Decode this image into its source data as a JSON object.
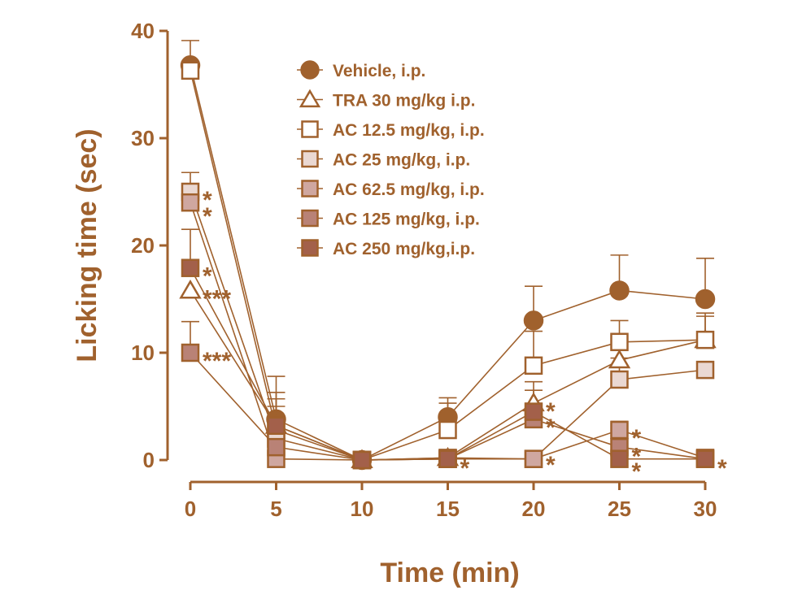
{
  "chart_data": {
    "type": "line",
    "title": "",
    "xlabel": "Time (min)",
    "ylabel": "Licking time (sec)",
    "x": [
      0,
      5,
      10,
      15,
      20,
      25,
      30
    ],
    "xlim": [
      0,
      30
    ],
    "ylim": [
      0,
      40
    ],
    "xticks": [
      "0",
      "5",
      "10",
      "15",
      "20",
      "25",
      "30"
    ],
    "yticks": [
      "0",
      "10",
      "20",
      "30",
      "40"
    ],
    "grid": false,
    "legend_position": "top-right",
    "series": [
      {
        "name": "Vehicle, i.p.",
        "marker": "circle",
        "fill": "#a0612d",
        "values": [
          36.8,
          3.8,
          0,
          4.0,
          13.0,
          15.8,
          15.0
        ],
        "err": [
          2.3,
          4.0,
          0,
          1.8,
          3.2,
          3.3,
          3.8
        ]
      },
      {
        "name": "TRA 30 mg/kg i.p.",
        "marker": "triangle",
        "fill": "#ffffff",
        "values": [
          15.8,
          3.2,
          0,
          0.2,
          5.3,
          9.3,
          11.2
        ],
        "err": [
          0,
          2.5,
          0,
          0,
          2.0,
          2.5,
          2.2
        ]
      },
      {
        "name": "AC 12.5 mg/kg, i.p.",
        "marker": "square",
        "fill": "#ffffff",
        "values": [
          36.3,
          2.8,
          0,
          2.8,
          8.8,
          11.0,
          11.2
        ],
        "err": [
          0,
          3.5,
          0,
          2.5,
          3.2,
          2.0,
          2.5
        ]
      },
      {
        "name": "AC 25 mg/kg, i.p.",
        "marker": "square",
        "fill": "#ead8d2",
        "values": [
          25.0,
          2.0,
          0,
          0.2,
          0.1,
          7.5,
          8.4
        ],
        "err": [
          1.8,
          3.0,
          0,
          0,
          0,
          2.0,
          0
        ]
      },
      {
        "name": "AC 62.5 mg/kg, i.p.",
        "marker": "square",
        "fill": "#cfa7a0",
        "values": [
          24.0,
          0.1,
          0,
          0.1,
          0.1,
          2.8,
          0.2
        ],
        "err": [
          1.5,
          0,
          0,
          0,
          0,
          0.8,
          0
        ]
      },
      {
        "name": "AC 125 mg/kg, i.p.",
        "marker": "square",
        "fill": "#b98276",
        "values": [
          10.0,
          1.2,
          0,
          0.1,
          3.8,
          1.2,
          0.1
        ],
        "err": [
          2.9,
          2.0,
          0,
          0,
          1.5,
          0,
          0
        ]
      },
      {
        "name": "AC 250 mg/kg,i.p.",
        "marker": "square",
        "fill": "#a3604a",
        "values": [
          17.9,
          3.2,
          0,
          0.1,
          4.5,
          0.1,
          0.1
        ],
        "err": [
          3.6,
          2.5,
          0,
          0,
          2.0,
          0,
          0
        ]
      }
    ],
    "annotations": [
      {
        "x": 0,
        "y": 25.0,
        "text": "*"
      },
      {
        "x": 0,
        "y": 23.5,
        "text": "*"
      },
      {
        "x": 0,
        "y": 17.9,
        "text": "*"
      },
      {
        "x": 0,
        "y": 15.8,
        "text": "***"
      },
      {
        "x": 0,
        "y": 10.0,
        "text": "***"
      },
      {
        "x": 15,
        "y": 0.0,
        "text": "*"
      },
      {
        "x": 20,
        "y": 5.3,
        "text": "*"
      },
      {
        "x": 20,
        "y": 3.8,
        "text": "*"
      },
      {
        "x": 20,
        "y": 0.3,
        "text": "*"
      },
      {
        "x": 25,
        "y": 2.8,
        "text": "*"
      },
      {
        "x": 25,
        "y": 1.1,
        "text": "*"
      },
      {
        "x": 25,
        "y": -0.3,
        "text": "*"
      },
      {
        "x": 30,
        "y": 0.0,
        "text": "*"
      }
    ]
  }
}
